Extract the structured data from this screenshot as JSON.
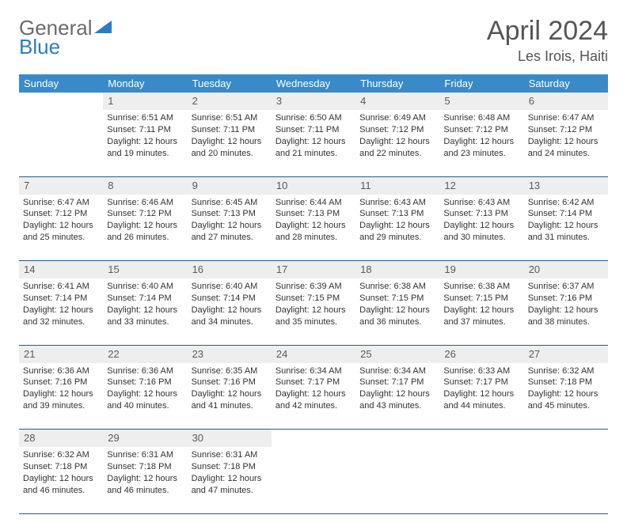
{
  "brand": {
    "general": "General",
    "blue": "Blue"
  },
  "title": "April 2024",
  "location": "Les Irois, Haiti",
  "colors": {
    "header_bg": "#3a8ac9",
    "header_text": "#ffffff",
    "daynum_bg": "#eeeeee",
    "border": "#2f5a7a",
    "logo_gray": "#6b6b6b",
    "logo_blue": "#2f7bc2"
  },
  "weekdays": [
    "Sunday",
    "Monday",
    "Tuesday",
    "Wednesday",
    "Thursday",
    "Friday",
    "Saturday"
  ],
  "weeks": [
    [
      null,
      {
        "n": "1",
        "sr": "Sunrise: 6:51 AM",
        "ss": "Sunset: 7:11 PM",
        "d1": "Daylight: 12 hours",
        "d2": "and 19 minutes."
      },
      {
        "n": "2",
        "sr": "Sunrise: 6:51 AM",
        "ss": "Sunset: 7:11 PM",
        "d1": "Daylight: 12 hours",
        "d2": "and 20 minutes."
      },
      {
        "n": "3",
        "sr": "Sunrise: 6:50 AM",
        "ss": "Sunset: 7:11 PM",
        "d1": "Daylight: 12 hours",
        "d2": "and 21 minutes."
      },
      {
        "n": "4",
        "sr": "Sunrise: 6:49 AM",
        "ss": "Sunset: 7:12 PM",
        "d1": "Daylight: 12 hours",
        "d2": "and 22 minutes."
      },
      {
        "n": "5",
        "sr": "Sunrise: 6:48 AM",
        "ss": "Sunset: 7:12 PM",
        "d1": "Daylight: 12 hours",
        "d2": "and 23 minutes."
      },
      {
        "n": "6",
        "sr": "Sunrise: 6:47 AM",
        "ss": "Sunset: 7:12 PM",
        "d1": "Daylight: 12 hours",
        "d2": "and 24 minutes."
      }
    ],
    [
      {
        "n": "7",
        "sr": "Sunrise: 6:47 AM",
        "ss": "Sunset: 7:12 PM",
        "d1": "Daylight: 12 hours",
        "d2": "and 25 minutes."
      },
      {
        "n": "8",
        "sr": "Sunrise: 6:46 AM",
        "ss": "Sunset: 7:12 PM",
        "d1": "Daylight: 12 hours",
        "d2": "and 26 minutes."
      },
      {
        "n": "9",
        "sr": "Sunrise: 6:45 AM",
        "ss": "Sunset: 7:13 PM",
        "d1": "Daylight: 12 hours",
        "d2": "and 27 minutes."
      },
      {
        "n": "10",
        "sr": "Sunrise: 6:44 AM",
        "ss": "Sunset: 7:13 PM",
        "d1": "Daylight: 12 hours",
        "d2": "and 28 minutes."
      },
      {
        "n": "11",
        "sr": "Sunrise: 6:43 AM",
        "ss": "Sunset: 7:13 PM",
        "d1": "Daylight: 12 hours",
        "d2": "and 29 minutes."
      },
      {
        "n": "12",
        "sr": "Sunrise: 6:43 AM",
        "ss": "Sunset: 7:13 PM",
        "d1": "Daylight: 12 hours",
        "d2": "and 30 minutes."
      },
      {
        "n": "13",
        "sr": "Sunrise: 6:42 AM",
        "ss": "Sunset: 7:14 PM",
        "d1": "Daylight: 12 hours",
        "d2": "and 31 minutes."
      }
    ],
    [
      {
        "n": "14",
        "sr": "Sunrise: 6:41 AM",
        "ss": "Sunset: 7:14 PM",
        "d1": "Daylight: 12 hours",
        "d2": "and 32 minutes."
      },
      {
        "n": "15",
        "sr": "Sunrise: 6:40 AM",
        "ss": "Sunset: 7:14 PM",
        "d1": "Daylight: 12 hours",
        "d2": "and 33 minutes."
      },
      {
        "n": "16",
        "sr": "Sunrise: 6:40 AM",
        "ss": "Sunset: 7:14 PM",
        "d1": "Daylight: 12 hours",
        "d2": "and 34 minutes."
      },
      {
        "n": "17",
        "sr": "Sunrise: 6:39 AM",
        "ss": "Sunset: 7:15 PM",
        "d1": "Daylight: 12 hours",
        "d2": "and 35 minutes."
      },
      {
        "n": "18",
        "sr": "Sunrise: 6:38 AM",
        "ss": "Sunset: 7:15 PM",
        "d1": "Daylight: 12 hours",
        "d2": "and 36 minutes."
      },
      {
        "n": "19",
        "sr": "Sunrise: 6:38 AM",
        "ss": "Sunset: 7:15 PM",
        "d1": "Daylight: 12 hours",
        "d2": "and 37 minutes."
      },
      {
        "n": "20",
        "sr": "Sunrise: 6:37 AM",
        "ss": "Sunset: 7:16 PM",
        "d1": "Daylight: 12 hours",
        "d2": "and 38 minutes."
      }
    ],
    [
      {
        "n": "21",
        "sr": "Sunrise: 6:36 AM",
        "ss": "Sunset: 7:16 PM",
        "d1": "Daylight: 12 hours",
        "d2": "and 39 minutes."
      },
      {
        "n": "22",
        "sr": "Sunrise: 6:36 AM",
        "ss": "Sunset: 7:16 PM",
        "d1": "Daylight: 12 hours",
        "d2": "and 40 minutes."
      },
      {
        "n": "23",
        "sr": "Sunrise: 6:35 AM",
        "ss": "Sunset: 7:16 PM",
        "d1": "Daylight: 12 hours",
        "d2": "and 41 minutes."
      },
      {
        "n": "24",
        "sr": "Sunrise: 6:34 AM",
        "ss": "Sunset: 7:17 PM",
        "d1": "Daylight: 12 hours",
        "d2": "and 42 minutes."
      },
      {
        "n": "25",
        "sr": "Sunrise: 6:34 AM",
        "ss": "Sunset: 7:17 PM",
        "d1": "Daylight: 12 hours",
        "d2": "and 43 minutes."
      },
      {
        "n": "26",
        "sr": "Sunrise: 6:33 AM",
        "ss": "Sunset: 7:17 PM",
        "d1": "Daylight: 12 hours",
        "d2": "and 44 minutes."
      },
      {
        "n": "27",
        "sr": "Sunrise: 6:32 AM",
        "ss": "Sunset: 7:18 PM",
        "d1": "Daylight: 12 hours",
        "d2": "and 45 minutes."
      }
    ],
    [
      {
        "n": "28",
        "sr": "Sunrise: 6:32 AM",
        "ss": "Sunset: 7:18 PM",
        "d1": "Daylight: 12 hours",
        "d2": "and 46 minutes."
      },
      {
        "n": "29",
        "sr": "Sunrise: 6:31 AM",
        "ss": "Sunset: 7:18 PM",
        "d1": "Daylight: 12 hours",
        "d2": "and 46 minutes."
      },
      {
        "n": "30",
        "sr": "Sunrise: 6:31 AM",
        "ss": "Sunset: 7:18 PM",
        "d1": "Daylight: 12 hours",
        "d2": "and 47 minutes."
      },
      null,
      null,
      null,
      null
    ]
  ]
}
